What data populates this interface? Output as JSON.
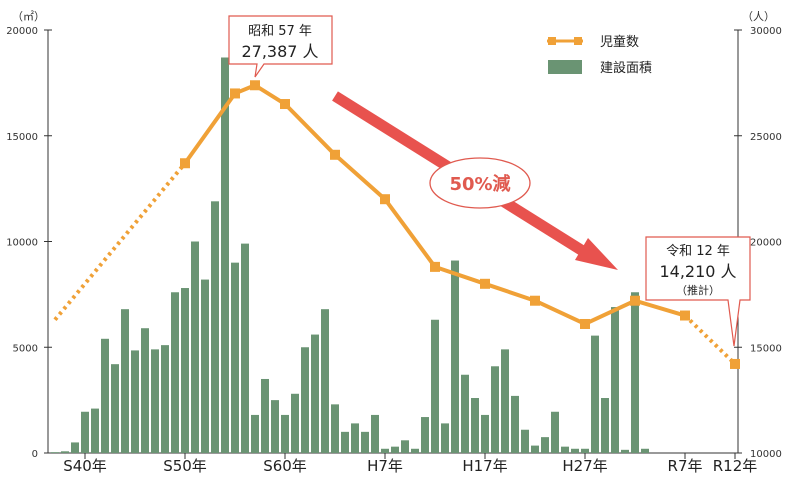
{
  "chart_data": {
    "type": "bar+line",
    "left_unit": "（㎡）",
    "right_unit": "（人）",
    "y_left_ticks": [
      0,
      5000,
      10000,
      15000,
      20000
    ],
    "y_left_range": [
      0,
      20000
    ],
    "y_right_ticks": [
      10000,
      15000,
      20000,
      25000,
      30000
    ],
    "y_right_range": [
      10000,
      30000
    ],
    "x_labels": [
      "S40年",
      "S50年",
      "S60年",
      "H7年",
      "H17年",
      "H27年",
      "R7年",
      "R12年"
    ],
    "colors": {
      "bars": "#6a9473",
      "line": "#f0a137",
      "arrow": "#e8524e"
    },
    "bar_series": {
      "name": "建設面積",
      "values": [
        40,
        80,
        500,
        1950,
        2100,
        5400,
        4200,
        6800,
        4850,
        5900,
        4900,
        5100,
        7600,
        7800,
        10000,
        8200,
        11900,
        18700,
        9000,
        9900,
        1800,
        3500,
        2500,
        1800,
        2800,
        5000,
        5600,
        6800,
        2300,
        1000,
        1400,
        1000,
        1800,
        200,
        300,
        600,
        200,
        1700,
        6300,
        1400,
        9100,
        3700,
        2600,
        1800,
        4100,
        4900,
        2700,
        1100,
        350,
        750,
        1950,
        300,
        200,
        200,
        5550,
        2600,
        6900,
        150,
        7600,
        200
      ]
    },
    "line_series": {
      "name": "児童数",
      "points": [
        {
          "x": 1962,
          "y": 16300,
          "projected": true
        },
        {
          "x": 1975,
          "y": 23700
        },
        {
          "x": 1980,
          "y": 27000
        },
        {
          "x": 1982,
          "y": 27387
        },
        {
          "x": 1985,
          "y": 26500
        },
        {
          "x": 1990,
          "y": 24100
        },
        {
          "x": 1995,
          "y": 22000
        },
        {
          "x": 2000,
          "y": 18800
        },
        {
          "x": 2005,
          "y": 18000
        },
        {
          "x": 2010,
          "y": 17200
        },
        {
          "x": 2015,
          "y": 16100
        },
        {
          "x": 2020,
          "y": 17200
        },
        {
          "x": 2025,
          "y": 16500
        },
        {
          "x": 2030,
          "y": 14210,
          "projected": true
        }
      ]
    },
    "legend": [
      {
        "label": "児童数",
        "type": "line"
      },
      {
        "label": "建設面積",
        "type": "bar"
      }
    ],
    "annotations": {
      "peak_line1": "昭和 57 年",
      "peak_line2": "27,387 人",
      "reduction": "50%減",
      "future_line1": "令和 12 年",
      "future_line2": "14,210 人",
      "future_line3": "（推計）"
    }
  }
}
